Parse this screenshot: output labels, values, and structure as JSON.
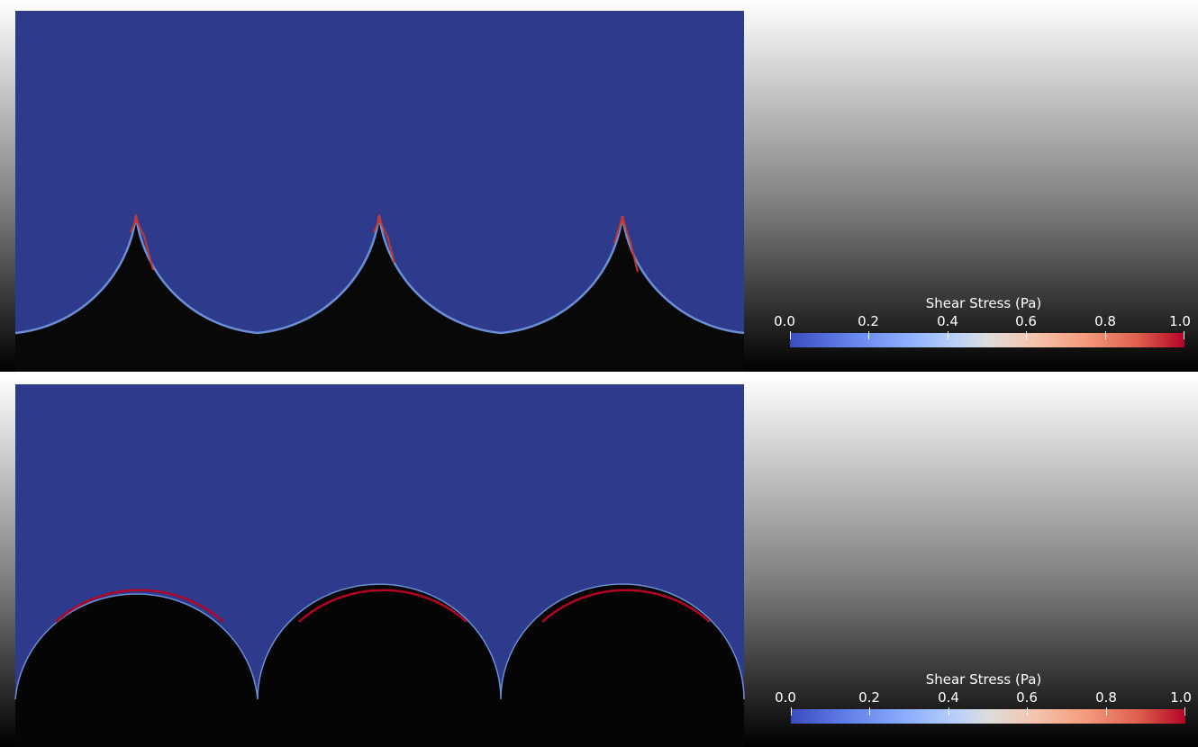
{
  "views": [
    {
      "id": "top",
      "colorbar": {
        "title": "Shear Stress (Pa)",
        "ticks": [
          "0.0",
          "0.2",
          "0.4",
          "0.6",
          "0.8",
          "1.0"
        ],
        "range": [
          0.0,
          1.0
        ],
        "colormap_start": "#3b4cc0",
        "colormap_mid": "#dddddd",
        "colormap_end": "#b40426"
      }
    },
    {
      "id": "bottom",
      "colorbar": {
        "title": "Shear Stress (Pa)",
        "ticks": [
          "0.0",
          "0.2",
          "0.4",
          "0.6",
          "0.8",
          "1.0"
        ],
        "range": [
          0.0,
          1.0
        ],
        "colormap_start": "#3b4cc0",
        "colormap_mid": "#dddddd",
        "colormap_end": "#b40426"
      }
    }
  ],
  "colors": {
    "fluid": "#2e3a8c",
    "solid_top": "#6a6a6a",
    "solid_bottom": "#0a0a0a",
    "high_stress": "#b40426",
    "low_stress_edge": "#6b8fd6"
  }
}
